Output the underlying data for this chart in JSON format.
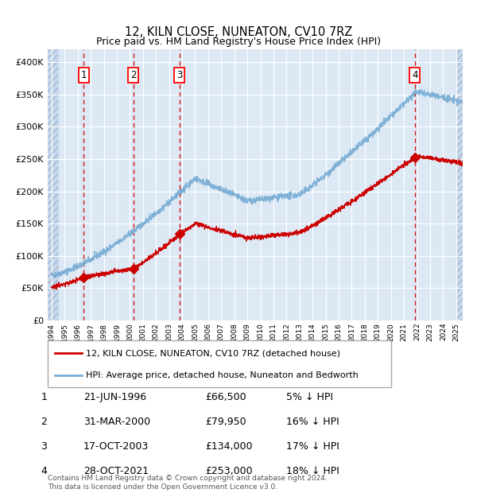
{
  "title": "12, KILN CLOSE, NUNEATON, CV10 7RZ",
  "subtitle": "Price paid vs. HM Land Registry's House Price Index (HPI)",
  "xlim_start": 1993.7,
  "xlim_end": 2025.5,
  "ylim": [
    0,
    420000
  ],
  "yticks": [
    0,
    50000,
    100000,
    150000,
    200000,
    250000,
    300000,
    350000,
    400000
  ],
  "ytick_labels": [
    "£0",
    "£50K",
    "£100K",
    "£150K",
    "£200K",
    "£250K",
    "£300K",
    "£350K",
    "£400K"
  ],
  "background_color": "#dce9f5",
  "grid_color": "#ffffff",
  "sale_color": "#cc0000",
  "hpi_color": "#7aadd4",
  "hatch_left_end": 1994.5,
  "hatch_right_start": 2025.0,
  "sales": [
    {
      "date_num": 1996.47,
      "price": 66500,
      "label": "1"
    },
    {
      "date_num": 2000.25,
      "price": 79950,
      "label": "2"
    },
    {
      "date_num": 2003.8,
      "price": 134000,
      "label": "3"
    },
    {
      "date_num": 2021.83,
      "price": 253000,
      "label": "4"
    }
  ],
  "vline_color": "#cc0000",
  "legend_sale_label": "12, KILN CLOSE, NUNEATON, CV10 7RZ (detached house)",
  "legend_hpi_label": "HPI: Average price, detached house, Nuneaton and Bedworth",
  "table_rows": [
    {
      "num": "1",
      "date": "21-JUN-1996",
      "price": "£66,500",
      "pct": "5% ↓ HPI"
    },
    {
      "num": "2",
      "date": "31-MAR-2000",
      "price": "£79,950",
      "pct": "16% ↓ HPI"
    },
    {
      "num": "3",
      "date": "17-OCT-2003",
      "price": "£134,000",
      "pct": "17% ↓ HPI"
    },
    {
      "num": "4",
      "date": "28-OCT-2021",
      "price": "£253,000",
      "pct": "18% ↓ HPI"
    }
  ],
  "footer": "Contains HM Land Registry data © Crown copyright and database right 2024.\nThis data is licensed under the Open Government Licence v3.0.",
  "xtick_years": [
    1994,
    1995,
    1996,
    1997,
    1998,
    1999,
    2000,
    2001,
    2002,
    2003,
    2004,
    2005,
    2006,
    2007,
    2008,
    2009,
    2010,
    2011,
    2012,
    2013,
    2014,
    2015,
    2016,
    2017,
    2018,
    2019,
    2020,
    2021,
    2022,
    2023,
    2024,
    2025
  ]
}
